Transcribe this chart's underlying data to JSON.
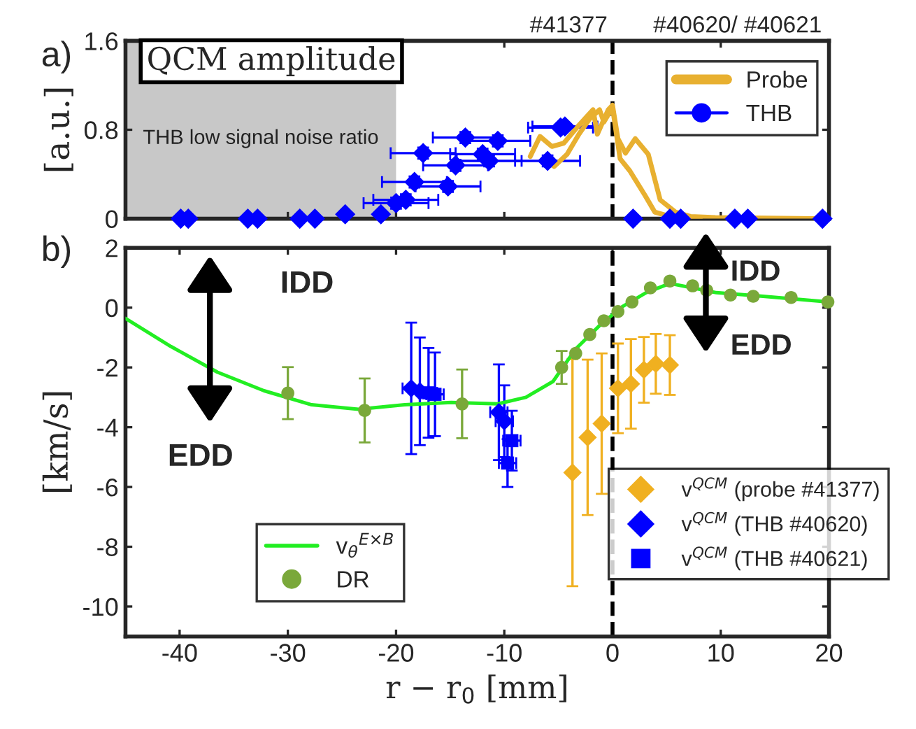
{
  "chart_data": [
    {
      "type": "line",
      "title": "QCM amplitude",
      "ylabel": "[a.u.]",
      "annotations": [
        "a)",
        "#41377",
        "#40620/ #40621"
      ],
      "xlim": [
        -45,
        20
      ],
      "xticks": [
        -40,
        -30,
        -20,
        -10,
        0,
        10,
        20
      ],
      "ylim": [
        0,
        1.6
      ],
      "yticks": [
        0,
        0.8,
        1.6
      ],
      "tick_labels": "y",
      "legend": "top right",
      "grid": false,
      "ref_lines": [
        {
          "axis": "x",
          "value": 0,
          "line_style": "dashed",
          "color": "#000000"
        }
      ],
      "bands": [
        {
          "axis": "x",
          "from": -45,
          "to": -20,
          "label": "THB low signal noise ratio",
          "color": "#c8c8c8"
        }
      ],
      "series": [
        {
          "name": "Probe",
          "color": "#e8b030",
          "marker": "none",
          "x": [
            -7.6,
            -6.7,
            -5.6,
            -4.5,
            -3.2,
            -1.8,
            -1.4,
            -0.4,
            0,
            0.5,
            1.2,
            2.1,
            3.3,
            4.4,
            5.8,
            7.2,
            9.5,
            20
          ],
          "values": [
            0.56,
            0.74,
            0.65,
            0.68,
            0.83,
            0.98,
            0.76,
            0.98,
            1.02,
            0.72,
            0.59,
            0.72,
            0.58,
            0.17,
            0.06,
            0.02,
            0.01,
            0
          ]
        },
        {
          "color": "#e8b030",
          "marker": "none",
          "x": [
            -5.4,
            -4.2,
            -3.1,
            -2.1,
            -1.2,
            -0.8,
            0,
            0.7,
            1.6,
            3.0,
            3.9,
            5.3,
            8.1
          ],
          "values": [
            0.47,
            0.58,
            0.76,
            0.9,
            0.98,
            0.87,
            1.0,
            0.54,
            0.43,
            0.21,
            0.06,
            0.02,
            0
          ]
        },
        {
          "name": "THB",
          "type": "scatter",
          "color": "#0000ff",
          "marker": "diamond",
          "x": [
            -39.9,
            -39.2,
            -33.7,
            -32.8,
            -28.9,
            -27.5,
            -24.7,
            -21.4,
            -20.0,
            -19.1,
            -18.3,
            -15.2,
            -14.5,
            -17.5,
            -13.6,
            -12.0,
            -11.4,
            -10.6,
            -6.0,
            -4.8,
            -4.4,
            1.9,
            5.3,
            6.3,
            11.3,
            12.5,
            19.4
          ],
          "values": [
            0,
            0,
            0,
            0,
            0,
            0,
            0.04,
            0.04,
            0.14,
            0.17,
            0.33,
            0.29,
            0.48,
            0.59,
            0.73,
            0.58,
            0.52,
            0.7,
            0.52,
            0.82,
            0.83,
            0,
            0,
            0,
            0,
            0,
            0
          ],
          "errors": [
            null,
            null,
            null,
            null,
            null,
            null,
            null,
            null,
            0.05,
            0.05,
            0.05,
            0.05,
            0.05,
            0.05,
            0.05,
            0.05,
            0.05,
            0.05,
            0.05,
            null,
            null,
            null,
            null,
            null,
            null,
            null,
            null
          ],
          "xerrors": [
            null,
            null,
            null,
            null,
            null,
            null,
            null,
            null,
            3,
            3,
            3,
            3,
            3,
            3,
            3,
            3,
            3,
            3,
            3,
            3,
            3,
            null,
            null,
            null,
            null,
            null,
            null
          ]
        }
      ]
    },
    {
      "type": "line",
      "ylabel": "[km/s]",
      "xlabel": "r − r$_{0}$ [mm]",
      "annotations": [
        "b)",
        "IDD",
        "EDD",
        "IDD",
        "EDD"
      ],
      "xlim": [
        -45,
        20
      ],
      "xticks": [
        -40,
        -30,
        -20,
        -10,
        0,
        10,
        20
      ],
      "ylim": [
        -11,
        2
      ],
      "yticks": [
        -10,
        -8,
        -6,
        -4,
        -2,
        0,
        2
      ],
      "legend": "bottom right",
      "grid": false,
      "ref_lines": [
        {
          "axis": "x",
          "value": 0,
          "line_style": "dashed",
          "color": "#000000"
        }
      ],
      "series": [
        {
          "name": "v$_{θ}$$^{E×B}$",
          "color": "#22ee22",
          "marker": "none",
          "x": [
            -45,
            -40.8,
            -36.5,
            -32.2,
            -27.8,
            -23.5,
            -19.2,
            -14.9,
            -10.6,
            -8.0,
            -5.5,
            -3.4,
            -1.2,
            0.9,
            3.1,
            5.3,
            7.4,
            9.6,
            13.9,
            19.9
          ],
          "values": [
            -0.36,
            -1.3,
            -2.16,
            -2.78,
            -3.25,
            -3.4,
            -3.25,
            -3.17,
            -3.22,
            -3.0,
            -2.47,
            -1.38,
            -0.6,
            0.03,
            0.5,
            0.81,
            0.66,
            0.5,
            0.38,
            0.19
          ]
        },
        {
          "name": "DR",
          "type": "scatter",
          "color": "#7aa83a",
          "marker": "circle",
          "x": [
            -30.0,
            -22.9,
            -13.9,
            -4.7,
            -3.4,
            -2.1,
            -0.8,
            0.5,
            1.8,
            3.5,
            5.3,
            7.4,
            8.7,
            10.9,
            13.0,
            16.5,
            19.9
          ],
          "values": [
            -2.86,
            -3.44,
            -3.22,
            -2.0,
            -1.53,
            -0.9,
            -0.44,
            -0.13,
            0.19,
            0.66,
            0.89,
            0.73,
            0.58,
            0.42,
            0.38,
            0.34,
            0.19
          ],
          "errors": [
            0.87,
            1.07,
            1.15,
            0.55,
            null,
            null,
            null,
            null,
            null,
            null,
            null,
            null,
            null,
            null,
            null,
            null,
            null
          ]
        },
        {
          "name": "v$^{QCM}$ (probe #41377)",
          "type": "scatter",
          "color": "#f0b020",
          "marker": "diamond",
          "x": [
            -3.7,
            -2.3,
            -1.0,
            0.5,
            1.7,
            2.9,
            4.0,
            5.3
          ],
          "values": [
            -5.52,
            -4.34,
            -3.88,
            -2.7,
            -2.55,
            -2.08,
            -1.88,
            -1.92
          ],
          "errors": [
            3.8,
            2.6,
            2.35,
            1.5,
            1.5,
            1.1,
            1.0,
            1.0
          ]
        },
        {
          "name": "v$^{QCM}$ (THB #40620)",
          "type": "scatter",
          "color": "#0000ff",
          "marker": "diamond",
          "x": [
            -18.6,
            -17.8,
            -10.5,
            -10.0
          ],
          "values": [
            -2.7,
            -2.8,
            -3.5,
            -3.8
          ],
          "errors": [
            2.2,
            1.8,
            1.6,
            1.2
          ],
          "xerrors": [
            0.8,
            0.8,
            0.8,
            0.8
          ]
        },
        {
          "name": "v$^{QCM}$ (THB #40621)",
          "type": "scatter",
          "color": "#0000ff",
          "marker": "square",
          "x": [
            -17.0,
            -16.4,
            -9.3,
            -9.7
          ],
          "values": [
            -2.85,
            -2.9,
            -4.45,
            -5.2
          ],
          "errors": [
            1.5,
            1.4,
            1.0,
            0.8
          ],
          "xerrors": [
            0.8,
            0.8,
            0.8,
            0.8
          ]
        }
      ]
    }
  ]
}
